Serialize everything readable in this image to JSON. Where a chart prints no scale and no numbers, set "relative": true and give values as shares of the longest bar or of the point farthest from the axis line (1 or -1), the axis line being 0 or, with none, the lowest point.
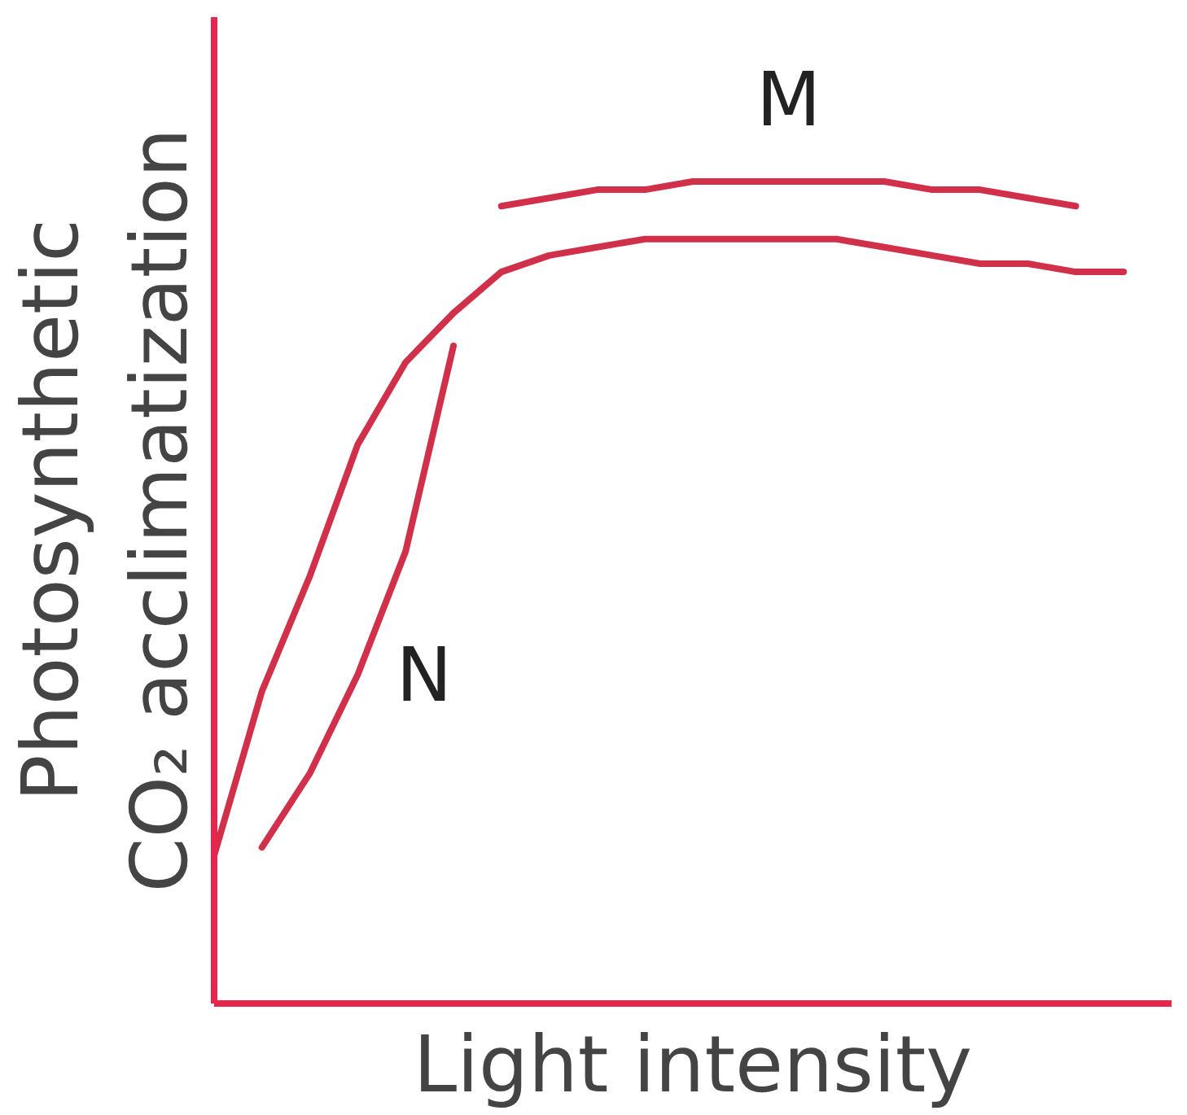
{
  "chart_data": {
    "type": "line",
    "relative": true,
    "xlabel": "Light intensity",
    "ylabel": "Photosynthetic\nCO₂ acclimatization",
    "marker": "none",
    "line_style": "solid",
    "categories": [
      null,
      null,
      null,
      null,
      null,
      null,
      null,
      null,
      null,
      null,
      null,
      null,
      null,
      null,
      null,
      null,
      null,
      null,
      null,
      null
    ],
    "series": [
      {
        "color": "#d0304a",
        "values": [
          0.18,
          0.38,
          0.52,
          0.68,
          0.78,
          0.84,
          0.89,
          0.91,
          0.92,
          0.93,
          0.93,
          0.93,
          0.93,
          0.93,
          0.92,
          0.91,
          0.9,
          0.9,
          0.89,
          0.89
        ]
      },
      {
        "color": "#d0304a",
        "values": [
          null,
          null,
          null,
          null,
          null,
          null,
          0.97,
          0.98,
          0.99,
          0.99,
          1.0,
          1.0,
          1.0,
          1.0,
          1.0,
          0.99,
          0.99,
          0.98,
          0.97,
          null
        ]
      },
      {
        "color": "#d0304a",
        "values": [
          null,
          0.19,
          0.28,
          0.4,
          0.55,
          0.8,
          null,
          null,
          null,
          null,
          null,
          null,
          null,
          null,
          null,
          null,
          null,
          null,
          null,
          null
        ]
      }
    ],
    "annotations": [
      "M",
      "N"
    ]
  }
}
